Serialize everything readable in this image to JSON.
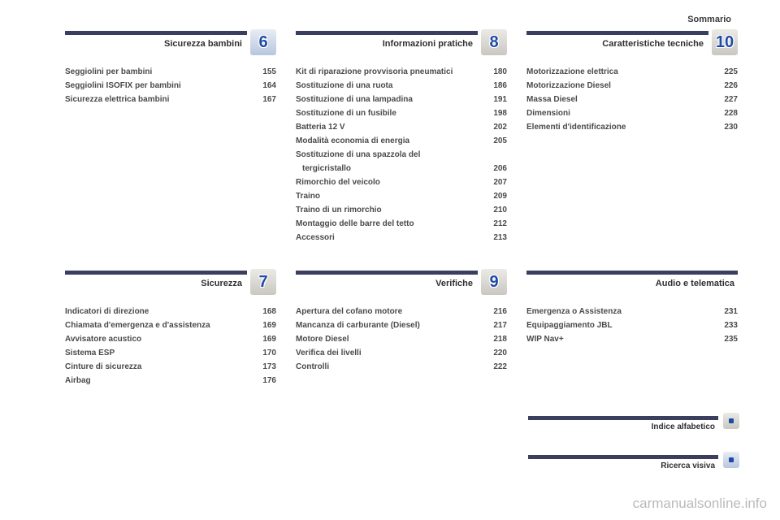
{
  "header_right": "Sommario",
  "watermark": "carmanualsonline.info",
  "colors": {
    "bar": "#3a3f60",
    "chip_num": "#1e4aa8"
  },
  "sections": [
    {
      "slot": 0,
      "number": "6",
      "chip_theme": "blue",
      "title": "Sicurezza bambini",
      "items": [
        {
          "label": "Seggiolini per bambini",
          "page": "155"
        },
        {
          "label": "Seggiolini ISOFIX per bambini",
          "page": "164"
        },
        {
          "label": "Sicurezza elettrica bambini",
          "page": "167"
        }
      ]
    },
    {
      "slot": 1,
      "number": "8",
      "chip_theme": "gray",
      "title": "Informazioni pratiche",
      "items": [
        {
          "label": "Kit di riparazione provvisoria pneumatici",
          "page": "180"
        },
        {
          "label": "Sostituzione di una ruota",
          "page": "186"
        },
        {
          "label": "Sostituzione di una lampadina",
          "page": "191"
        },
        {
          "label": "Sostituzione di un fusibile",
          "page": "198"
        },
        {
          "label": "Batteria 12 V",
          "page": "202"
        },
        {
          "label": "Modalità economia di energia",
          "page": "205"
        },
        {
          "label": "Sostituzione di una spazzola del",
          "page": ""
        },
        {
          "label": "tergicristallo",
          "page": "206",
          "indent": true
        },
        {
          "label": "Rimorchio del veicolo",
          "page": "207"
        },
        {
          "label": "Traino",
          "page": "209"
        },
        {
          "label": "Traino di un rimorchio",
          "page": "210"
        },
        {
          "label": "Montaggio delle barre del tetto",
          "page": "212"
        },
        {
          "label": "Accessori",
          "page": "213"
        }
      ]
    },
    {
      "slot": 2,
      "number": "10",
      "chip_theme": "gray",
      "title": "Caratteristiche tecniche",
      "items": [
        {
          "label": "Motorizzazione elettrica",
          "page": "225"
        },
        {
          "label": "Motorizzazione Diesel",
          "page": "226"
        },
        {
          "label": "Massa Diesel",
          "page": "227"
        },
        {
          "label": "Dimensioni",
          "page": "228"
        },
        {
          "label": "Elementi d'identificazione",
          "page": "230"
        }
      ]
    },
    {
      "slot": 3,
      "number": "7",
      "chip_theme": "gray",
      "title": "Sicurezza",
      "items": [
        {
          "label": "Indicatori di direzione",
          "page": "168"
        },
        {
          "label": "Chiamata d'emergenza e d'assistenza",
          "page": "169"
        },
        {
          "label": "Avvisatore acustico",
          "page": "169"
        },
        {
          "label": "Sistema ESP",
          "page": "170"
        },
        {
          "label": "Cinture di sicurezza",
          "page": "173"
        },
        {
          "label": "Airbag",
          "page": "176"
        }
      ]
    },
    {
      "slot": 4,
      "number": "9",
      "chip_theme": "gray",
      "title": "Verifiche",
      "items": [
        {
          "label": "Apertura del cofano motore",
          "page": "216"
        },
        {
          "label": "Mancanza di carburante (Diesel)",
          "page": "217"
        },
        {
          "label": "Motore Diesel",
          "page": "218"
        },
        {
          "label": "Verifica dei livelli",
          "page": "220"
        },
        {
          "label": "Controlli",
          "page": "222"
        }
      ]
    },
    {
      "slot": 5,
      "chip_theme": "blue",
      "title": "Audio e telematica",
      "items": [
        {
          "label": "Emergenza o Assistenza",
          "page": "231"
        },
        {
          "label": "Equipaggiamento JBL",
          "page": "233"
        },
        {
          "label": "WIP Nav+",
          "page": "235"
        }
      ]
    }
  ],
  "small_sections": [
    {
      "title": "Indice alfabetico",
      "chip_theme": "gray"
    },
    {
      "title": "Ricerca visiva",
      "chip_theme": "blue"
    }
  ]
}
